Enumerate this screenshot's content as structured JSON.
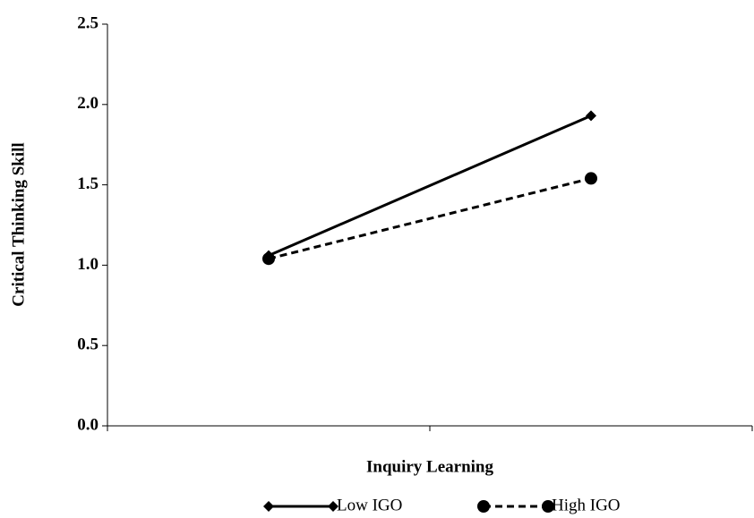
{
  "chart_data": {
    "type": "line",
    "x_label": "Inquiry Learning",
    "y_label": "Critical Thinking Skill",
    "categories": [
      null,
      null
    ],
    "series": [
      {
        "name": "Low IGO",
        "color": "#000000",
        "line_style": "solid",
        "marker": "diamond",
        "values": [
          1.06,
          1.93
        ]
      },
      {
        "name": "High IGO",
        "color": "#000000",
        "line_style": "dashed",
        "marker": "circle",
        "values": [
          1.04,
          1.54
        ]
      }
    ],
    "ylim": [
      0,
      2.5
    ],
    "yticks": [
      {
        "value": 0,
        "label": "0.0"
      },
      0.5,
      {
        "value": 1,
        "label": "1.0"
      },
      1.5,
      {
        "value": 2,
        "label": "2.0"
      },
      2.5
    ],
    "grid": false,
    "legend": "bottom"
  }
}
